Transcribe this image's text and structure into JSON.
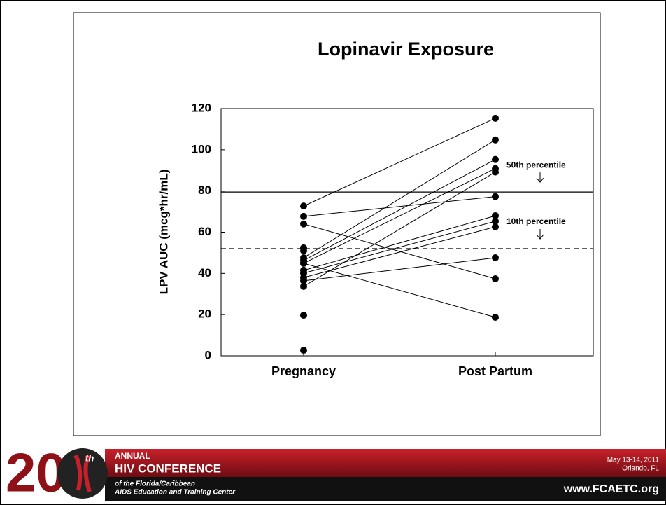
{
  "chart_data": {
    "type": "paired-dot",
    "title": "Lopinavir Exposure",
    "ylabel": "LPV AUC (mcg*hr/mL)",
    "categories": [
      "Pregnancy",
      "Post Partum"
    ],
    "series": [
      {
        "color": "#000000",
        "values": [
          72.7,
          115.3
        ]
      },
      {
        "color": "#000000",
        "values": [
          67.7,
          77.3
        ]
      },
      {
        "color": "#000000",
        "values": [
          64,
          37.4
        ]
      },
      {
        "color": "#000000",
        "values": [
          47.6,
          104.8
        ]
      },
      {
        "color": "#000000",
        "values": [
          46.3,
          95.3
        ]
      },
      {
        "color": "#000000",
        "values": [
          44.9,
          18.7
        ]
      },
      {
        "color": "#000000",
        "values": [
          44.9,
          90.9
        ]
      },
      {
        "color": "#000000",
        "values": [
          41.5,
          68
        ]
      },
      {
        "color": "#000000",
        "values": [
          40.1,
          65.3
        ]
      },
      {
        "color": "#000000",
        "values": [
          38,
          62.6
        ]
      },
      {
        "color": "#000000",
        "values": [
          36.4,
          47.6
        ]
      },
      {
        "color": "#000000",
        "values": [
          33.7,
          89.2
        ]
      },
      {
        "color": "#000000",
        "values": [
          52.4,
          null
        ]
      },
      {
        "color": "#000000",
        "values": [
          51,
          null
        ]
      },
      {
        "color": "#000000",
        "values": [
          19.7,
          null
        ]
      },
      {
        "color": "#000000",
        "values": [
          2.7,
          null
        ]
      }
    ],
    "ylim": [
      0,
      120
    ],
    "yticks": [
      0,
      20,
      40,
      60,
      80,
      100,
      120
    ],
    "reference_lines": [
      {
        "label": "50th percentile",
        "value": 79.5,
        "style": "solid"
      },
      {
        "label": "10th percentile",
        "value": 52,
        "style": "dashed"
      }
    ]
  },
  "footer": {
    "number": "20",
    "ordinal": "th",
    "line1": "ANNUAL",
    "line2": "HIV CONFERENCE",
    "line3": "of the Florida/Caribbean",
    "line4": "AIDS Education and Training Center",
    "date": "May 13-14, 2011",
    "place": "Orlando, FL",
    "url": "www.FCAETC.org"
  }
}
